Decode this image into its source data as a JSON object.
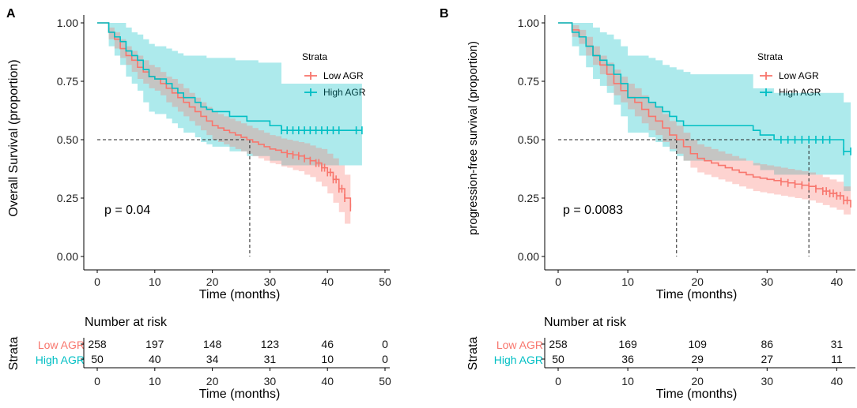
{
  "colors": {
    "low": "#F8766D",
    "high": "#00BFC4",
    "low_band": "#F8766D",
    "high_band": "#00BFC4"
  },
  "chart_data": [
    {
      "panel_label": "A",
      "type": "line",
      "kind": "kaplan-meier",
      "ylabel": "Overall Survival (proportion)",
      "xlabel": "Time (months)",
      "xlim": [
        0,
        50
      ],
      "ylim": [
        0,
        1
      ],
      "x_ticks": [
        0,
        10,
        20,
        30,
        40,
        50
      ],
      "y_ticks": [
        "0.00",
        "0.25",
        "0.50",
        "0.75",
        "1.00"
      ],
      "pvalue": "p = 0.04",
      "legend": {
        "title": "Strata",
        "items": [
          "Low AGR",
          "High AGR"
        ],
        "position": "top-right"
      },
      "median_lines": [
        26.5
      ],
      "series": [
        {
          "name": "Low AGR",
          "x": [
            0,
            1,
            2,
            3,
            4,
            5,
            6,
            7,
            8,
            9,
            10,
            11,
            12,
            13,
            14,
            15,
            16,
            17,
            18,
            19,
            20,
            21,
            22,
            23,
            24,
            25,
            26,
            27,
            28,
            29,
            30,
            31,
            32,
            33,
            34,
            35,
            36,
            37,
            38,
            39,
            40,
            41,
            42,
            43,
            44
          ],
          "y": [
            1.0,
            1.0,
            0.96,
            0.93,
            0.89,
            0.86,
            0.84,
            0.81,
            0.79,
            0.77,
            0.76,
            0.74,
            0.72,
            0.7,
            0.68,
            0.66,
            0.64,
            0.62,
            0.6,
            0.58,
            0.56,
            0.55,
            0.54,
            0.53,
            0.52,
            0.51,
            0.5,
            0.49,
            0.48,
            0.47,
            0.46,
            0.455,
            0.445,
            0.44,
            0.435,
            0.43,
            0.42,
            0.41,
            0.4,
            0.38,
            0.36,
            0.33,
            0.29,
            0.25,
            0.21
          ],
          "lower": [
            1.0,
            1.0,
            0.93,
            0.89,
            0.85,
            0.82,
            0.79,
            0.76,
            0.74,
            0.72,
            0.71,
            0.69,
            0.66,
            0.64,
            0.62,
            0.6,
            0.58,
            0.56,
            0.54,
            0.52,
            0.5,
            0.49,
            0.48,
            0.47,
            0.46,
            0.45,
            0.44,
            0.43,
            0.42,
            0.41,
            0.4,
            0.395,
            0.385,
            0.38,
            0.37,
            0.365,
            0.35,
            0.34,
            0.32,
            0.3,
            0.27,
            0.23,
            0.19,
            0.14,
            0.1
          ],
          "upper": [
            1.0,
            1.0,
            0.98,
            0.96,
            0.93,
            0.9,
            0.88,
            0.86,
            0.84,
            0.82,
            0.81,
            0.79,
            0.77,
            0.76,
            0.74,
            0.72,
            0.7,
            0.68,
            0.66,
            0.64,
            0.62,
            0.61,
            0.6,
            0.59,
            0.58,
            0.57,
            0.56,
            0.55,
            0.54,
            0.53,
            0.52,
            0.515,
            0.505,
            0.5,
            0.495,
            0.49,
            0.485,
            0.475,
            0.465,
            0.46,
            0.44,
            0.42,
            0.39,
            0.35,
            0.31
          ],
          "censor_x": [
            33,
            34,
            35,
            36,
            37,
            38,
            38.5,
            39,
            39.5,
            40,
            40.5,
            41,
            41.5,
            42,
            42.5,
            43,
            44
          ],
          "at_risk": [
            "258",
            "197",
            "148",
            "123",
            "46",
            "0"
          ]
        },
        {
          "name": "High AGR",
          "x": [
            0,
            1,
            2,
            3,
            4,
            5,
            6,
            7,
            8,
            9,
            10,
            11,
            12,
            13,
            14,
            15,
            16,
            17,
            18,
            19,
            20,
            21,
            22,
            23,
            24,
            25,
            26,
            27,
            28,
            29,
            30,
            31,
            32,
            33,
            34,
            35,
            36,
            37,
            38,
            39,
            40,
            41,
            42,
            43,
            44,
            45,
            46
          ],
          "y": [
            1.0,
            1.0,
            0.96,
            0.94,
            0.92,
            0.88,
            0.86,
            0.84,
            0.8,
            0.77,
            0.76,
            0.76,
            0.74,
            0.72,
            0.7,
            0.68,
            0.68,
            0.66,
            0.64,
            0.63,
            0.62,
            0.62,
            0.62,
            0.6,
            0.6,
            0.6,
            0.58,
            0.58,
            0.58,
            0.58,
            0.56,
            0.56,
            0.54,
            0.54,
            0.54,
            0.54,
            0.54,
            0.54,
            0.54,
            0.54,
            0.54,
            0.54,
            0.54,
            0.54,
            0.54,
            0.54,
            0.54
          ],
          "lower": [
            1.0,
            1.0,
            0.9,
            0.86,
            0.82,
            0.77,
            0.74,
            0.71,
            0.66,
            0.62,
            0.61,
            0.61,
            0.59,
            0.57,
            0.55,
            0.53,
            0.53,
            0.51,
            0.49,
            0.48,
            0.47,
            0.47,
            0.47,
            0.45,
            0.45,
            0.45,
            0.43,
            0.43,
            0.43,
            0.43,
            0.41,
            0.41,
            0.39,
            0.39,
            0.39,
            0.39,
            0.39,
            0.39,
            0.39,
            0.39,
            0.39,
            0.39,
            0.39,
            0.39,
            0.39,
            0.39,
            0.39
          ],
          "upper": [
            1.0,
            1.0,
            1.0,
            1.0,
            1.0,
            0.98,
            0.96,
            0.95,
            0.93,
            0.91,
            0.9,
            0.9,
            0.89,
            0.88,
            0.87,
            0.86,
            0.86,
            0.86,
            0.86,
            0.85,
            0.85,
            0.85,
            0.85,
            0.85,
            0.84,
            0.84,
            0.84,
            0.84,
            0.83,
            0.83,
            0.83,
            0.83,
            0.74,
            0.74,
            0.74,
            0.74,
            0.74,
            0.74,
            0.74,
            0.74,
            0.74,
            0.74,
            0.74,
            0.74,
            0.74,
            0.74,
            0.74
          ],
          "censor_x": [
            32,
            33,
            34,
            35,
            36,
            37,
            38,
            39,
            40,
            41,
            42,
            45,
            46
          ],
          "at_risk": [
            "50",
            "40",
            "34",
            "31",
            "10",
            "0"
          ]
        }
      ],
      "risk_table": {
        "title": "Number at risk",
        "strata_label": "Strata",
        "times": [
          0,
          10,
          20,
          30,
          40,
          50
        ],
        "xlabel": "Time (months)"
      }
    },
    {
      "panel_label": "B",
      "type": "line",
      "kind": "kaplan-meier",
      "ylabel": "progression-free survival (proportion)",
      "xlabel": "Time (months)",
      "xlim": [
        0,
        42
      ],
      "ylim": [
        0,
        1
      ],
      "x_ticks": [
        0,
        10,
        20,
        30,
        40
      ],
      "y_ticks": [
        "0.00",
        "0.25",
        "0.50",
        "0.75",
        "1.00"
      ],
      "pvalue": "p = 0.0083",
      "legend": {
        "title": "Strata",
        "items": [
          "Low AGR",
          "High AGR"
        ],
        "position": "top-right"
      },
      "median_lines": [
        17,
        36
      ],
      "series": [
        {
          "name": "Low AGR",
          "x": [
            0,
            1,
            2,
            3,
            4,
            5,
            6,
            7,
            8,
            9,
            10,
            11,
            12,
            13,
            14,
            15,
            16,
            17,
            18,
            19,
            20,
            21,
            22,
            23,
            24,
            25,
            26,
            27,
            28,
            29,
            30,
            31,
            32,
            33,
            34,
            35,
            36,
            37,
            38,
            39,
            40,
            41,
            42
          ],
          "y": [
            1.0,
            1.0,
            0.97,
            0.94,
            0.9,
            0.86,
            0.82,
            0.78,
            0.74,
            0.71,
            0.68,
            0.66,
            0.63,
            0.6,
            0.58,
            0.55,
            0.52,
            0.5,
            0.47,
            0.44,
            0.42,
            0.41,
            0.4,
            0.39,
            0.38,
            0.37,
            0.36,
            0.35,
            0.34,
            0.335,
            0.33,
            0.325,
            0.32,
            0.315,
            0.31,
            0.305,
            0.3,
            0.29,
            0.28,
            0.27,
            0.26,
            0.24,
            0.21
          ],
          "lower": [
            1.0,
            1.0,
            0.94,
            0.91,
            0.86,
            0.82,
            0.78,
            0.73,
            0.69,
            0.66,
            0.63,
            0.6,
            0.57,
            0.54,
            0.52,
            0.49,
            0.46,
            0.44,
            0.41,
            0.38,
            0.36,
            0.35,
            0.34,
            0.33,
            0.32,
            0.31,
            0.3,
            0.29,
            0.28,
            0.275,
            0.27,
            0.265,
            0.26,
            0.255,
            0.25,
            0.245,
            0.24,
            0.23,
            0.22,
            0.21,
            0.2,
            0.18,
            0.15
          ],
          "upper": [
            1.0,
            1.0,
            0.99,
            0.97,
            0.94,
            0.9,
            0.86,
            0.83,
            0.8,
            0.77,
            0.74,
            0.72,
            0.69,
            0.66,
            0.64,
            0.61,
            0.58,
            0.56,
            0.53,
            0.5,
            0.48,
            0.47,
            0.46,
            0.45,
            0.44,
            0.43,
            0.42,
            0.41,
            0.4,
            0.395,
            0.39,
            0.385,
            0.38,
            0.375,
            0.37,
            0.365,
            0.36,
            0.35,
            0.34,
            0.33,
            0.32,
            0.3,
            0.28
          ],
          "censor_x": [
            32,
            33,
            34,
            35,
            36,
            37,
            38,
            38.5,
            39,
            39.5,
            40,
            40.5,
            41,
            41.5
          ],
          "at_risk": [
            "258",
            "169",
            "109",
            "86",
            "31"
          ]
        },
        {
          "name": "High AGR",
          "x": [
            0,
            1,
            2,
            3,
            4,
            5,
            6,
            7,
            8,
            9,
            10,
            11,
            12,
            13,
            14,
            15,
            16,
            17,
            18,
            19,
            20,
            21,
            22,
            23,
            24,
            25,
            26,
            27,
            28,
            29,
            30,
            31,
            32,
            33,
            34,
            35,
            36,
            37,
            38,
            39,
            40,
            41,
            42
          ],
          "y": [
            1.0,
            1.0,
            0.96,
            0.94,
            0.9,
            0.86,
            0.84,
            0.82,
            0.78,
            0.74,
            0.68,
            0.68,
            0.68,
            0.66,
            0.64,
            0.62,
            0.6,
            0.58,
            0.56,
            0.56,
            0.56,
            0.56,
            0.56,
            0.56,
            0.56,
            0.56,
            0.56,
            0.56,
            0.54,
            0.52,
            0.52,
            0.5,
            0.5,
            0.5,
            0.5,
            0.5,
            0.5,
            0.5,
            0.5,
            0.5,
            0.5,
            0.45,
            0.45
          ],
          "lower": [
            1.0,
            1.0,
            0.9,
            0.86,
            0.81,
            0.76,
            0.73,
            0.7,
            0.65,
            0.6,
            0.53,
            0.53,
            0.53,
            0.51,
            0.49,
            0.47,
            0.45,
            0.43,
            0.41,
            0.41,
            0.41,
            0.41,
            0.41,
            0.41,
            0.41,
            0.41,
            0.41,
            0.41,
            0.39,
            0.37,
            0.37,
            0.35,
            0.35,
            0.35,
            0.35,
            0.35,
            0.35,
            0.35,
            0.35,
            0.35,
            0.35,
            0.28,
            0.28
          ],
          "upper": [
            1.0,
            1.0,
            1.0,
            1.0,
            1.0,
            0.98,
            0.96,
            0.95,
            0.93,
            0.9,
            0.86,
            0.86,
            0.86,
            0.85,
            0.84,
            0.82,
            0.81,
            0.8,
            0.79,
            0.78,
            0.78,
            0.78,
            0.78,
            0.78,
            0.78,
            0.78,
            0.78,
            0.78,
            0.72,
            0.72,
            0.72,
            0.7,
            0.7,
            0.7,
            0.7,
            0.7,
            0.7,
            0.7,
            0.7,
            0.7,
            0.7,
            0.66,
            0.66
          ],
          "censor_x": [
            32,
            33,
            34,
            35,
            36,
            37,
            38,
            39,
            41,
            42
          ],
          "at_risk": [
            "50",
            "36",
            "29",
            "27",
            "11"
          ]
        }
      ],
      "risk_table": {
        "title": "Number at risk",
        "strata_label": "Strata",
        "times": [
          0,
          10,
          20,
          30,
          40
        ],
        "xlabel": "Time (months)"
      }
    }
  ]
}
